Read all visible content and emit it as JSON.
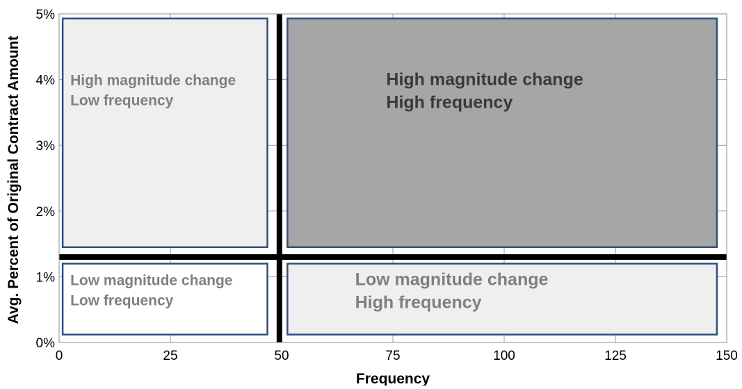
{
  "chart_data": {
    "type": "quadrant",
    "xlabel": "Frequency",
    "ylabel": "Avg. Percent of Original Contract Amount",
    "xlim": [
      0,
      150
    ],
    "ylim": [
      0,
      5
    ],
    "x_ticks": [
      {
        "value": 0,
        "label": "0"
      },
      {
        "value": 25,
        "label": "25"
      },
      {
        "value": 50,
        "label": "50"
      },
      {
        "value": 75,
        "label": "75"
      },
      {
        "value": 100,
        "label": "100"
      },
      {
        "value": 125,
        "label": "125"
      },
      {
        "value": 150,
        "label": "150"
      }
    ],
    "y_ticks": [
      {
        "value": 0,
        "label": "0%"
      },
      {
        "value": 1,
        "label": "1%"
      },
      {
        "value": 2,
        "label": "2%"
      },
      {
        "value": 3,
        "label": "3%"
      },
      {
        "value": 4,
        "label": "4%"
      },
      {
        "value": 5,
        "label": "5%"
      }
    ],
    "grid": true,
    "divider_lines": {
      "x": 49.5,
      "y": 1.3
    },
    "quadrants": [
      {
        "id": "high-magnitude-low-frequency",
        "x": [
          0.8,
          46.8
        ],
        "y": [
          1.45,
          4.93
        ],
        "fill": "#efefef",
        "text_color": "#7f7f7f",
        "label_lines": [
          "High magnitude change",
          "Low frequency"
        ]
      },
      {
        "id": "high-magnitude-high-frequency",
        "x": [
          51.3,
          147.8
        ],
        "y": [
          1.45,
          4.93
        ],
        "fill": "#a6a6a6",
        "text_color": "#3a3a3a",
        "label_lines": [
          "High magnitude change",
          "High frequency"
        ]
      },
      {
        "id": "low-magnitude-low-frequency",
        "x": [
          0.8,
          46.8
        ],
        "y": [
          0.12,
          1.2
        ],
        "fill": "#ffffff",
        "text_color": "#7f7f7f",
        "label_lines": [
          "Low magnitude change",
          "Low frequency"
        ]
      },
      {
        "id": "low-magnitude-high-frequency",
        "x": [
          51.3,
          147.8
        ],
        "y": [
          0.12,
          1.2
        ],
        "fill": "#efefef",
        "text_color": "#7f7f7f",
        "label_lines": [
          "Low magnitude change",
          "High frequency"
        ]
      }
    ],
    "colors": {
      "box_border": "#2e4f7d",
      "divider": "#000000",
      "grid": "#9a9a9a"
    }
  }
}
